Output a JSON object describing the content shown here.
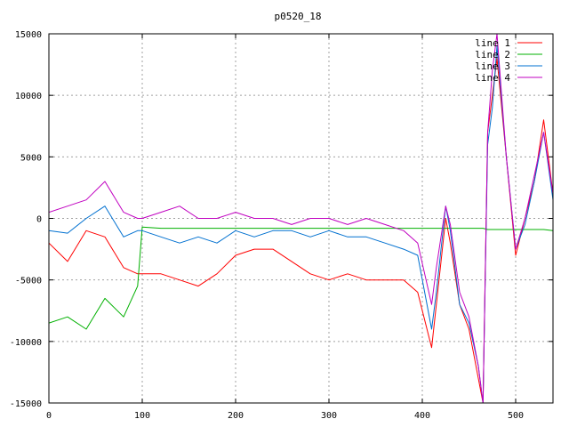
{
  "chart_data": {
    "type": "line",
    "title": "p0520_18",
    "xlabel": "",
    "ylabel": "",
    "xlim": [
      0,
      540
    ],
    "ylim": [
      -15000,
      15000
    ],
    "x_ticks": [
      0,
      100,
      200,
      300,
      400,
      500
    ],
    "y_ticks": [
      -15000,
      -10000,
      -5000,
      0,
      5000,
      10000,
      15000
    ],
    "grid": true,
    "legend_position": "top-right",
    "x": [
      0,
      20,
      40,
      60,
      80,
      95,
      100,
      120,
      140,
      160,
      180,
      200,
      220,
      240,
      260,
      280,
      300,
      320,
      340,
      360,
      380,
      395,
      410,
      415,
      425,
      430,
      440,
      450,
      460,
      465,
      470,
      475,
      480,
      490,
      500,
      510,
      520,
      530,
      540
    ],
    "series": [
      {
        "name": "line 1",
        "color": "#ff0000",
        "values": [
          -2000,
          -3500,
          -1000,
          -1500,
          -4000,
          -4500,
          -4500,
          -4500,
          -5000,
          -5500,
          -4500,
          -3000,
          -2500,
          -2500,
          -3500,
          -4500,
          -5000,
          -4500,
          -5000,
          -5000,
          -5000,
          -6000,
          -10500,
          -7000,
          0,
          -2000,
          -7000,
          -9000,
          -13000,
          -15000,
          7000,
          10000,
          13000,
          5000,
          -3000,
          0,
          3000,
          8000,
          2000
        ]
      },
      {
        "name": "line 2",
        "color": "#00b000",
        "values": [
          -8500,
          -8000,
          -9000,
          -6500,
          -8000,
          -5500,
          -700,
          -800,
          -800,
          -800,
          -800,
          -800,
          -800,
          -800,
          -800,
          -800,
          -800,
          -800,
          -800,
          -800,
          -800,
          -800,
          -800,
          -800,
          -800,
          -800,
          -800,
          -800,
          -800,
          -800,
          -900,
          -900,
          -900,
          -900,
          -900,
          -900,
          -900,
          -900,
          -1000
        ]
      },
      {
        "name": "line 3",
        "color": "#0070d0",
        "values": [
          -1000,
          -1200,
          0,
          1000,
          -1500,
          -1000,
          -1000,
          -1500,
          -2000,
          -1500,
          -2000,
          -1000,
          -1500,
          -1000,
          -1000,
          -1500,
          -1000,
          -1500,
          -1500,
          -2000,
          -2500,
          -3000,
          -9000,
          -6000,
          1000,
          -1000,
          -7000,
          -8500,
          -12000,
          -15000,
          6000,
          9000,
          14000,
          5000,
          -2500,
          -500,
          3000,
          7000,
          1500
        ]
      },
      {
        "name": "line 4",
        "color": "#c000c0",
        "values": [
          500,
          1000,
          1500,
          3000,
          500,
          0,
          0,
          500,
          1000,
          0,
          0,
          500,
          0,
          0,
          -500,
          0,
          0,
          -500,
          0,
          -500,
          -1000,
          -2000,
          -7000,
          -4000,
          1000,
          -500,
          -6000,
          -8000,
          -12000,
          -15000,
          7000,
          12000,
          15000,
          5000,
          -2500,
          0,
          3500,
          7000,
          2000
        ]
      }
    ]
  }
}
